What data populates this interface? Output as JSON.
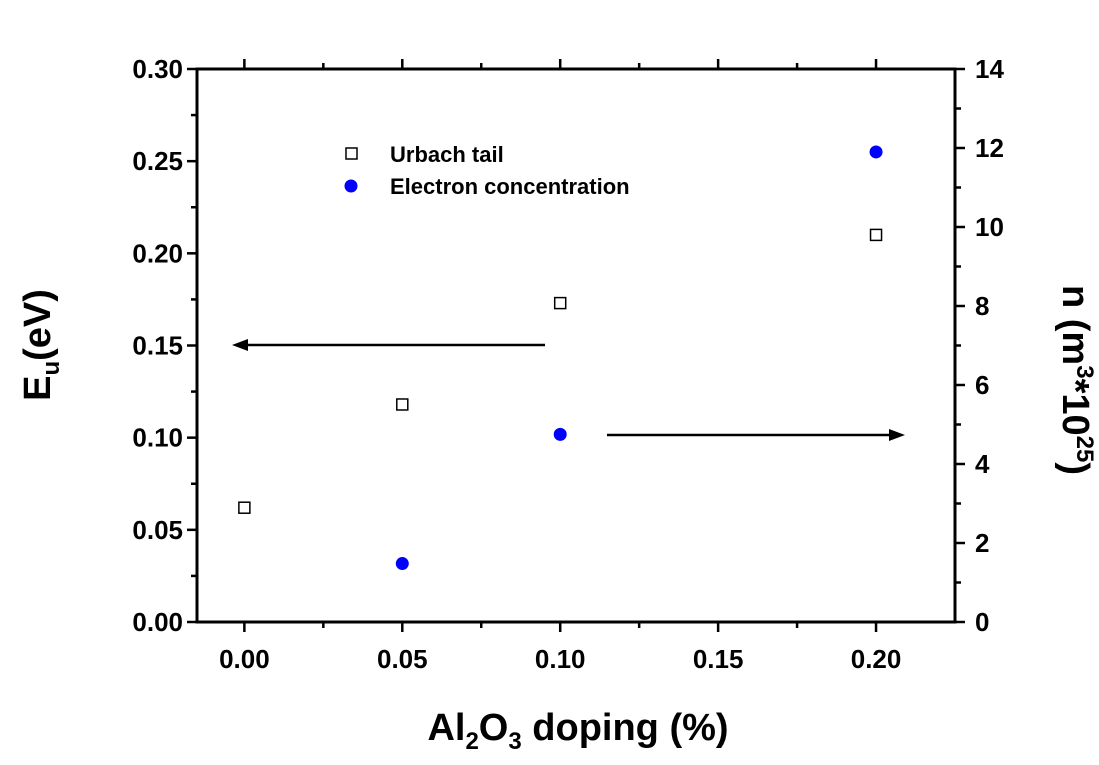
{
  "chart_data": {
    "type": "scatter",
    "x_axis": {
      "label_parts": [
        "Al",
        "2",
        "O",
        "3",
        " doping (%)"
      ],
      "range": [
        -0.015,
        0.225
      ],
      "ticks": [
        "0.00",
        "0.05",
        "0.10",
        "0.15",
        "0.20"
      ],
      "tick_values": [
        0.0,
        0.05,
        0.1,
        0.15,
        0.2
      ]
    },
    "y_axis_left": {
      "label_parts": [
        "E",
        "u",
        "(eV)"
      ],
      "range": [
        0.0,
        0.3
      ],
      "ticks": [
        "0.00",
        "0.05",
        "0.10",
        "0.15",
        "0.20",
        "0.25",
        "0.30"
      ],
      "tick_values": [
        0.0,
        0.05,
        0.1,
        0.15,
        0.2,
        0.25,
        0.3
      ]
    },
    "y_axis_right": {
      "label_parts": [
        "n (m",
        "3",
        "*10",
        "25",
        ")"
      ],
      "range": [
        0,
        14
      ],
      "ticks": [
        "0",
        "2",
        "4",
        "6",
        "8",
        "10",
        "12",
        "14"
      ],
      "tick_values": [
        0,
        2,
        4,
        6,
        8,
        10,
        12,
        14
      ]
    },
    "series": [
      {
        "name": "Urbach tail",
        "axis": "left",
        "marker": "open-square",
        "color": "#000000",
        "x": [
          0.0,
          0.05,
          0.1,
          0.2
        ],
        "y": [
          0.062,
          0.118,
          0.173,
          0.21
        ]
      },
      {
        "name": "Electron concentration",
        "axis": "right",
        "marker": "filled-circle",
        "color": "#0000ff",
        "x": [
          0.05,
          0.1,
          0.2
        ],
        "y": [
          1.48,
          4.75,
          11.9
        ]
      }
    ],
    "legend_position": "top-left",
    "grid": false,
    "annotations": [
      {
        "type": "arrow",
        "direction": "left",
        "points_to_axis": "left"
      },
      {
        "type": "arrow",
        "direction": "right",
        "points_to_axis": "right"
      }
    ]
  }
}
